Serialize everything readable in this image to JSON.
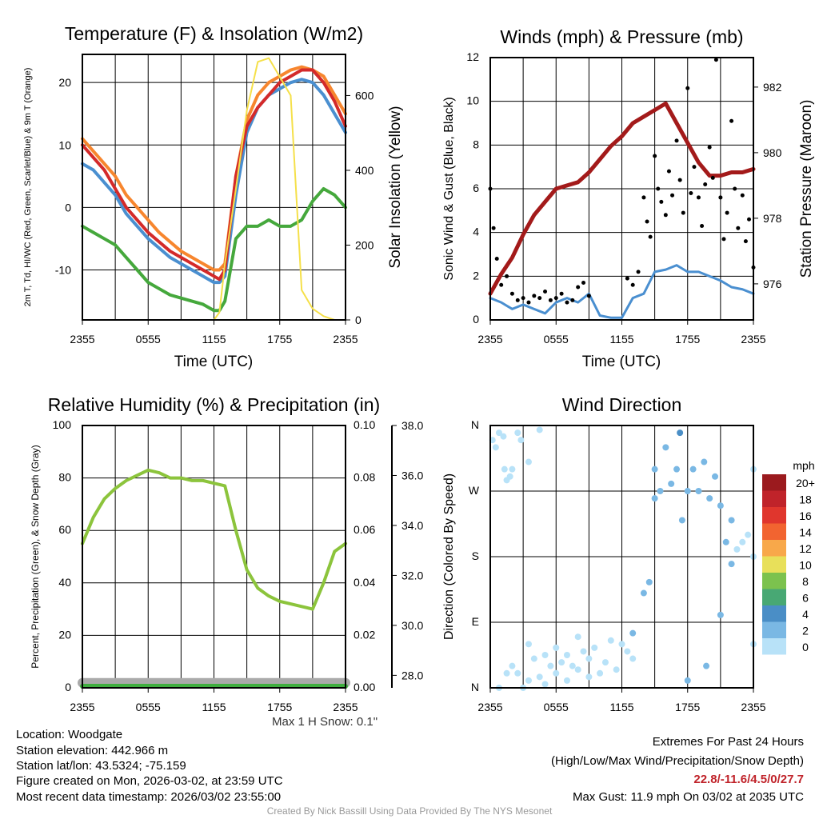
{
  "chart_data": [
    {
      "type": "line",
      "title": "Temperature (F) & Insolation (W/m2)",
      "xlabel": "Time (UTC)",
      "ylabel": "2m T, Td, HI/WC (Red, Green, Scarlet/Blue) & 9m T (Orange)",
      "ylabel2": "Solar Insolation (Yellow)",
      "ylim": [
        -18,
        24.5
      ],
      "ylim2": [
        0,
        710
      ],
      "yticks": [
        "20",
        "10",
        "0",
        "-10"
      ],
      "yticks2": [
        "0",
        "200",
        "400",
        "600"
      ],
      "xticks": [
        "2355",
        "0555",
        "1155",
        "1755",
        "2355"
      ],
      "hours": [
        0,
        1,
        2,
        3,
        4,
        5,
        6,
        7,
        8,
        9,
        10,
        11,
        12,
        12.5,
        13,
        14,
        15,
        16,
        17,
        18,
        19,
        20,
        21,
        22,
        23,
        24
      ],
      "series": [
        {
          "name": "9m T",
          "color": "#f7862e",
          "values": [
            11,
            9,
            7,
            5,
            2,
            0,
            -2,
            -4,
            -5.5,
            -7,
            -8,
            -9,
            -10,
            -10,
            -9,
            5,
            14,
            18,
            20,
            21,
            22,
            22.5,
            22,
            21,
            18,
            15
          ]
        },
        {
          "name": "Wind Chill",
          "color": "#4a8fd0",
          "values": [
            7,
            6,
            4,
            2,
            -1,
            -3,
            -5,
            -6.5,
            -8,
            -9,
            -10,
            -11,
            -12,
            -12,
            -11,
            2,
            12,
            16,
            18,
            19,
            20,
            20.5,
            20,
            18,
            15,
            12
          ]
        },
        {
          "name": "2m T",
          "color": "#d42a2a",
          "values": [
            10,
            8,
            6,
            3,
            0,
            -2,
            -4,
            -5.5,
            -7,
            -8,
            -9,
            -10,
            -11,
            -11.5,
            -10,
            5,
            13,
            16,
            18,
            20,
            21,
            22,
            22,
            20,
            17,
            13
          ]
        },
        {
          "name": "Dewpoint",
          "color": "#45a83c",
          "values": [
            -3,
            -4,
            -5,
            -6,
            -8,
            -10,
            -12,
            -13,
            -14,
            -14.5,
            -15,
            -15.5,
            -16.5,
            -16.5,
            -15,
            -5,
            -3,
            -3,
            -2,
            -3,
            -3,
            -2,
            1,
            3,
            2,
            0
          ]
        },
        {
          "name": "Solar Insolation",
          "color": "#f5e04a",
          "axis": 2,
          "values": [
            0,
            0,
            0,
            0,
            0,
            0,
            0,
            0,
            0,
            0,
            0,
            0,
            0,
            20,
            150,
            350,
            560,
            690,
            700,
            650,
            600,
            80,
            30,
            10,
            0,
            0
          ]
        }
      ]
    },
    {
      "type": "line",
      "title": "Winds (mph) & Pressure (mb)",
      "xlabel": "Time (UTC)",
      "ylabel": "Sonic Wind & Gust (Blue, Black)",
      "ylabel2": "Station Pressure (Maroon)",
      "ylim": [
        0,
        12
      ],
      "ylim2": [
        974.9,
        982.9
      ],
      "yticks": [
        "0",
        "2",
        "4",
        "6",
        "8",
        "10",
        "12"
      ],
      "yticks2": [
        "976",
        "978",
        "980",
        "982"
      ],
      "xticks": [
        "2355",
        "0555",
        "1155",
        "1755",
        "2355"
      ],
      "hours": [
        0,
        1,
        2,
        3,
        4,
        5,
        6,
        7,
        8,
        9,
        10,
        11,
        12,
        13,
        14,
        15,
        16,
        17,
        18,
        19,
        20,
        21,
        22,
        23,
        24
      ],
      "wind": {
        "color": "#4a8fd0",
        "values": [
          1,
          0.8,
          0.5,
          0.7,
          0.5,
          0.3,
          0.8,
          1,
          0.8,
          1.2,
          0.2,
          0.1,
          0.1,
          1,
          1.2,
          2.2,
          2.3,
          2.5,
          2.2,
          2.2,
          2,
          1.8,
          1.5,
          1.4,
          1.2
        ]
      },
      "pressure": {
        "color": "#a31a1a",
        "values": [
          975.7,
          976.3,
          976.8,
          977.5,
          978.1,
          978.5,
          978.9,
          979,
          979.1,
          979.4,
          979.8,
          980.2,
          980.5,
          980.9,
          981.1,
          981.3,
          981.5,
          980.9,
          980.3,
          979.7,
          979.3,
          979.3,
          979.4,
          979.4,
          979.5
        ]
      },
      "gusts": {
        "color": "#000000",
        "points": [
          [
            0,
            6
          ],
          [
            0.3,
            4.2
          ],
          [
            0.6,
            2.8
          ],
          [
            1,
            1.6
          ],
          [
            1.5,
            2
          ],
          [
            2,
            1.2
          ],
          [
            2.5,
            0.9
          ],
          [
            3,
            1
          ],
          [
            3.5,
            0.8
          ],
          [
            4,
            1.1
          ],
          [
            4.5,
            1
          ],
          [
            5,
            1.3
          ],
          [
            5.5,
            0.9
          ],
          [
            6,
            1
          ],
          [
            6.5,
            1.2
          ],
          [
            7,
            0.8
          ],
          [
            7.5,
            0.9
          ],
          [
            8,
            1.5
          ],
          [
            8.5,
            1.7
          ],
          [
            9,
            1.1
          ],
          [
            12.5,
            1.9
          ],
          [
            13,
            1.6
          ],
          [
            13.5,
            2.2
          ],
          [
            14,
            5.6
          ],
          [
            14.3,
            4.5
          ],
          [
            14.6,
            3.8
          ],
          [
            15,
            7.5
          ],
          [
            15.3,
            6
          ],
          [
            15.6,
            5.4
          ],
          [
            16,
            4.8
          ],
          [
            16.3,
            6.8
          ],
          [
            16.6,
            5.7
          ],
          [
            17,
            8.2
          ],
          [
            17.3,
            6.4
          ],
          [
            17.6,
            4.9
          ],
          [
            18,
            10.6
          ],
          [
            18.3,
            5.8
          ],
          [
            18.6,
            7
          ],
          [
            19,
            5.6
          ],
          [
            19.3,
            4.3
          ],
          [
            19.6,
            6.2
          ],
          [
            20,
            7.9
          ],
          [
            20.3,
            6.5
          ],
          [
            20.6,
            11.9
          ],
          [
            21,
            5.6
          ],
          [
            21.3,
            3.7
          ],
          [
            21.6,
            4.9
          ],
          [
            22,
            9.1
          ],
          [
            22.3,
            6
          ],
          [
            22.6,
            4.2
          ],
          [
            23,
            5.7
          ],
          [
            23.3,
            3.6
          ],
          [
            23.6,
            4.6
          ],
          [
            24,
            2.4
          ]
        ]
      }
    },
    {
      "type": "line",
      "title": "Relative Humidity (%) & Precipitation (in)",
      "xlabel": "",
      "ylabel": "Percent, Precipitation (Green), & Snow Depth (Gray)",
      "ylim": [
        0,
        100
      ],
      "ylim2": [
        0,
        0.1
      ],
      "ylim3": [
        27.5,
        38.0
      ],
      "yticks": [
        "0",
        "20",
        "40",
        "60",
        "80",
        "100"
      ],
      "yticks2": [
        "0.00",
        "0.02",
        "0.04",
        "0.06",
        "0.08",
        "0.10"
      ],
      "yticks3": [
        "28.0",
        "30.0",
        "32.0",
        "34.0",
        "36.0",
        "38.0"
      ],
      "xticks": [
        "2355",
        "0555",
        "1155",
        "1755",
        "2355"
      ],
      "hours": [
        0,
        1,
        2,
        3,
        4,
        5,
        6,
        7,
        8,
        9,
        10,
        11,
        12,
        13,
        14,
        15,
        16,
        17,
        18,
        19,
        20,
        21,
        22,
        23,
        24
      ],
      "rh": {
        "color": "#8cc43c",
        "values": [
          55,
          65,
          72,
          76,
          79,
          81,
          83,
          82,
          80,
          80,
          79,
          79,
          78,
          77,
          60,
          45,
          38,
          35,
          33,
          32,
          31,
          30,
          40,
          52,
          55
        ]
      },
      "precip": {
        "color": "#3fae3f",
        "values": [
          0,
          0,
          0,
          0,
          0,
          0,
          0,
          0,
          0,
          0,
          0,
          0,
          0,
          0,
          0,
          0,
          0,
          0,
          0,
          0,
          0,
          0,
          0,
          0,
          0
        ]
      },
      "snow_depth": {
        "color": "#aaaaaa",
        "values": [
          27.7,
          27.7,
          27.7,
          27.7,
          27.7,
          27.7,
          27.7,
          27.7,
          27.7,
          27.7,
          27.7,
          27.7,
          27.7,
          27.7,
          27.7,
          27.7,
          27.7,
          27.7,
          27.7,
          27.7,
          27.7,
          27.7,
          27.7,
          27.7,
          27.7
        ]
      },
      "note": "Max 1 H Snow: 0.1\""
    },
    {
      "type": "scatter",
      "title": "Wind Direction",
      "ylabel": "Direction (Colored By Speed)",
      "ylim": [
        0,
        360
      ],
      "yticks": [
        "N",
        "E",
        "S",
        "W",
        "N"
      ],
      "xticks": [
        "2355",
        "0555",
        "1155",
        "1755",
        "2355"
      ],
      "colorbar": {
        "title": "mph",
        "labels": [
          "20+",
          "18",
          "16",
          "14",
          "12",
          "10",
          "8",
          "6",
          "4",
          "2",
          "0"
        ],
        "colors": [
          "#9b1a1e",
          "#c0232a",
          "#e0362d",
          "#f26430",
          "#f8a84a",
          "#e8e05a",
          "#7cc24e",
          "#48a874",
          "#4a8ec6",
          "#7ab8e4",
          "#b8e2f8"
        ]
      },
      "points": [
        [
          0.2,
          340,
          1
        ],
        [
          0.5,
          330,
          1
        ],
        [
          0.8,
          350,
          0.5
        ],
        [
          1.2,
          345,
          0.5
        ],
        [
          1.3,
          300,
          1
        ],
        [
          1.5,
          285,
          1
        ],
        [
          1.8,
          290,
          1
        ],
        [
          2,
          300,
          0.5
        ],
        [
          2.5,
          350,
          0.5
        ],
        [
          2.8,
          340,
          0.5
        ],
        [
          3.5,
          310,
          0.5
        ],
        [
          4.5,
          354,
          0.5
        ],
        [
          0.8,
          0,
          0.5
        ],
        [
          1.5,
          20,
          0.5
        ],
        [
          2,
          30,
          0.5
        ],
        [
          2.5,
          20,
          0.5
        ],
        [
          3,
          0,
          0.5
        ],
        [
          3.5,
          10,
          0.5
        ],
        [
          3.5,
          60,
          0.5
        ],
        [
          4,
          40,
          0.5
        ],
        [
          4.5,
          15,
          0.5
        ],
        [
          5,
          5,
          0.5
        ],
        [
          5,
          45,
          0.5
        ],
        [
          5.5,
          30,
          0.5
        ],
        [
          6,
          20,
          0.5
        ],
        [
          6,
          55,
          0.5
        ],
        [
          6.5,
          35,
          0.5
        ],
        [
          7,
          10,
          0.5
        ],
        [
          7,
          45,
          0.5
        ],
        [
          7.5,
          30,
          0.5
        ],
        [
          8,
          70,
          1
        ],
        [
          8,
          25,
          0.5
        ],
        [
          8.5,
          50,
          0.5
        ],
        [
          9,
          15,
          0.5
        ],
        [
          9,
          40,
          1
        ],
        [
          9.5,
          55,
          0.5
        ],
        [
          10,
          20,
          0.5
        ],
        [
          10.5,
          35,
          0.5
        ],
        [
          11,
          65,
          0.5
        ],
        [
          11.5,
          25,
          0.5
        ],
        [
          12,
          60,
          1
        ],
        [
          12.5,
          50,
          1
        ],
        [
          13,
          40,
          1
        ],
        [
          13,
          75,
          2
        ],
        [
          14,
          130,
          2
        ],
        [
          14.5,
          145,
          2.5
        ],
        [
          15,
          260,
          2.5
        ],
        [
          15.5,
          270,
          3
        ],
        [
          15,
          300,
          2.5
        ],
        [
          16,
          330,
          2.5
        ],
        [
          16.5,
          280,
          3
        ],
        [
          17,
          300,
          2.5
        ],
        [
          17.3,
          350,
          4
        ],
        [
          17.5,
          230,
          3
        ],
        [
          18,
          270,
          2.5
        ],
        [
          18,
          10,
          2
        ],
        [
          18.5,
          300,
          2.5
        ],
        [
          19,
          270,
          3
        ],
        [
          19.5,
          310,
          2.5
        ],
        [
          19.7,
          30,
          3
        ],
        [
          20,
          260,
          2
        ],
        [
          20.5,
          290,
          2.5
        ],
        [
          21,
          250,
          2
        ],
        [
          21,
          100,
          2
        ],
        [
          21.5,
          200,
          2
        ],
        [
          22,
          170,
          2
        ],
        [
          22,
          230,
          2
        ],
        [
          22.5,
          190,
          1.5
        ],
        [
          23,
          200,
          1.5
        ],
        [
          23.5,
          210,
          1
        ],
        [
          24,
          300,
          1
        ],
        [
          24,
          180,
          1
        ],
        [
          24,
          60,
          1
        ]
      ]
    }
  ],
  "footer": {
    "location": "Location: Woodgate",
    "elevation": "Station elevation: 442.966 m",
    "latlon": "Station lat/lon: 43.5324; -75.159",
    "created": "Figure created on Mon, 2026-03-02, at 23:59 UTC",
    "recent": "Most recent data timestamp: 2026/03/02 23:55:00",
    "extremes_title": "Extremes For Past 24 Hours",
    "extremes_sub": "(High/Low/Max Wind/Precipitation/Snow Depth)",
    "extremes_values": "22.8/-11.6/4.5/0/27.7",
    "max_gust": "Max Gust: 11.9 mph On 03/02 at 2035 UTC",
    "credit": "Created By Nick Bassill Using Data Provided By The NYS Mesonet",
    "accent": "#c0232a"
  }
}
